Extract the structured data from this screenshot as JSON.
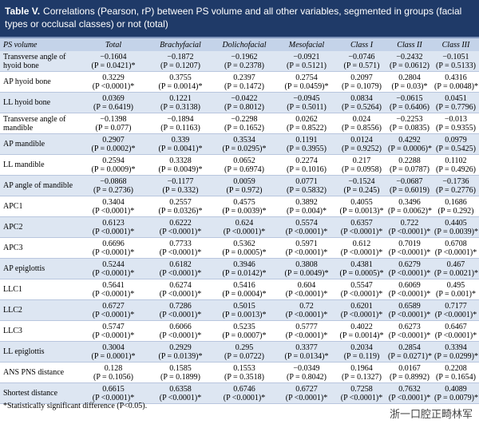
{
  "header": {
    "label": "Table V.",
    "title": "Correlations (Pearson, rP) between PS volume and all other variables, segmented in groups (facial types or occlusal classes) or not (total)"
  },
  "table": {
    "columns": [
      "PS volume",
      "Total",
      "Brachyfacial",
      "Dolichofacial",
      "Mesofacial",
      "Class I",
      "Class II",
      "Class III"
    ],
    "rows": [
      {
        "label": "Transverse angle of hyoid bone",
        "cells": [
          [
            "−0.1604",
            "(P = 0.0421)*"
          ],
          [
            "−0.1872",
            "(P = 0.1207)"
          ],
          [
            "−0.1962",
            "(P = 0.2378)"
          ],
          [
            "−0.0921",
            "(P = 0.5121)"
          ],
          [
            "−0.0746",
            "(P = 0.571)"
          ],
          [
            "−0.2432",
            "(P = 0.0612)"
          ],
          [
            "−0.1051",
            "(P = 0.5133)"
          ]
        ]
      },
      {
        "label": "AP hyoid bone",
        "cells": [
          [
            "0.3229",
            "(P <0.0001)*"
          ],
          [
            "0.3755",
            "(P = 0.0014)*"
          ],
          [
            "0.2397",
            "(P = 0.1472)"
          ],
          [
            "0.2754",
            "(P = 0.0459)*"
          ],
          [
            "0.2097",
            "(P = 0.1079)"
          ],
          [
            "0.2804",
            "(P = 0.03)*"
          ],
          [
            "0.4316",
            "(P = 0.0048)*"
          ]
        ]
      },
      {
        "label": "LL hyoid bone",
        "cells": [
          [
            "0.0369",
            "(P = 0.6419)"
          ],
          [
            "0.1221",
            "(P = 0.3138)"
          ],
          [
            "−0.0422",
            "(P = 0.8012)"
          ],
          [
            "−0.0945",
            "(P = 0.5011)"
          ],
          [
            "0.0834",
            "(P = 0.5264)"
          ],
          [
            "−0.0615",
            "(P = 0.6406)"
          ],
          [
            "0.0451",
            "(P = 0.7796)"
          ]
        ]
      },
      {
        "label": "Transverse angle of mandible",
        "cells": [
          [
            "−0.1398",
            "(P = 0.077)"
          ],
          [
            "−0.1894",
            "(P = 0.1163)"
          ],
          [
            "−0.2298",
            "(P = 0.1652)"
          ],
          [
            "0.0262",
            "(P = 0.8522)"
          ],
          [
            "0.024",
            "(P = 0.8556)"
          ],
          [
            "−0.2253",
            "(P = 0.0835)"
          ],
          [
            "−0.013",
            "(P = 0.9355)"
          ]
        ]
      },
      {
        "label": "AP mandible",
        "cells": [
          [
            "0.2907",
            "(P = 0.0002)*"
          ],
          [
            "0.339",
            "(P = 0.0041)*"
          ],
          [
            "0.3534",
            "(P = 0.0295)*"
          ],
          [
            "0.1191",
            "(P = 0.3955)"
          ],
          [
            "0.0124",
            "(P = 0.9252)"
          ],
          [
            "0.4292",
            "(P = 0.0006)*"
          ],
          [
            "0.0979",
            "(P = 0.5425)"
          ]
        ]
      },
      {
        "label": "LL mandible",
        "cells": [
          [
            "0.2594",
            "(P = 0.0009)*"
          ],
          [
            "0.3328",
            "(P = 0.0049)*"
          ],
          [
            "0.0652",
            "(P = 0.6974)"
          ],
          [
            "0.2274",
            "(P = 0.1016)"
          ],
          [
            "0.217",
            "(P = 0.0958)"
          ],
          [
            "0.2288",
            "(P = 0.0787)"
          ],
          [
            "0.1102",
            "(P = 0.4926)"
          ]
        ]
      },
      {
        "label": "AP angle of mandible",
        "cells": [
          [
            "−0.0868",
            "(P = 0.2736)"
          ],
          [
            "−0.1177",
            "(P = 0.332)"
          ],
          [
            "0.0059",
            "(P = 0.972)"
          ],
          [
            "0.0771",
            "(P = 0.5832)"
          ],
          [
            "−0.1524",
            "(P = 0.245)"
          ],
          [
            "−0.0687",
            "(P = 0.6019)"
          ],
          [
            "−0.1736",
            "(P = 0.2776)"
          ]
        ]
      },
      {
        "label": "APC1",
        "cells": [
          [
            "0.3404",
            "(P <0.0001)*"
          ],
          [
            "0.2557",
            "(P = 0.0326)*"
          ],
          [
            "0.4575",
            "(P = 0.0039)*"
          ],
          [
            "0.3892",
            "(P = 0.004)*"
          ],
          [
            "0.4055",
            "(P = 0.0013)*"
          ],
          [
            "0.3496",
            "(P = 0.0062)*"
          ],
          [
            "0.1686",
            "(P = 0.292)"
          ]
        ]
      },
      {
        "label": "APC2",
        "cells": [
          [
            "0.6123",
            "(P <0.0001)*"
          ],
          [
            "0.6222",
            "(P <0.0001)*"
          ],
          [
            "0.624",
            "(P <0.0001)*"
          ],
          [
            "0.5574",
            "(P <0.0001)*"
          ],
          [
            "0.6357",
            "(P <0.0001)*"
          ],
          [
            "0.722",
            "(P <0.0001)*"
          ],
          [
            "0.4405",
            "(P = 0.0039)*"
          ]
        ]
      },
      {
        "label": "APC3",
        "cells": [
          [
            "0.6696",
            "(P <0.0001)*"
          ],
          [
            "0.7733",
            "(P <0.0001)*"
          ],
          [
            "0.5362",
            "(P = 0.0005)*"
          ],
          [
            "0.5971",
            "(P <0.0001)*"
          ],
          [
            "0.612",
            "(P <0.0001)*"
          ],
          [
            "0.7019",
            "(P <0.0001)*"
          ],
          [
            "0.6708",
            "(P <0.0001)*"
          ]
        ]
      },
      {
        "label": "AP epiglottis",
        "cells": [
          [
            "0.5244",
            "(P <0.0001)*"
          ],
          [
            "0.6182",
            "(P <0.0001)*"
          ],
          [
            "0.3946",
            "(P = 0.0142)*"
          ],
          [
            "0.3808",
            "(P = 0.0049)*"
          ],
          [
            "0.4381",
            "(P = 0.0005)*"
          ],
          [
            "0.6279",
            "(P <0.0001)*"
          ],
          [
            "0.467",
            "(P = 0.0021)*"
          ]
        ]
      },
      {
        "label": "LLC1",
        "cells": [
          [
            "0.5641",
            "(P <0.0001)*"
          ],
          [
            "0.6274",
            "(P <0.0001)*"
          ],
          [
            "0.5416",
            "(P = 0.0004)*"
          ],
          [
            "0.604",
            "(P <0.0001)*"
          ],
          [
            "0.5547",
            "(P <0.0001)*"
          ],
          [
            "0.6069",
            "(P <0.0001)*"
          ],
          [
            "0.495",
            "(P = 0.001)*"
          ]
        ]
      },
      {
        "label": "LLC2",
        "cells": [
          [
            "0.6727",
            "(P <0.0001)*"
          ],
          [
            "0.7286",
            "(P <0.0001)*"
          ],
          [
            "0.5015",
            "(P = 0.0013)*"
          ],
          [
            "0.72",
            "(P <0.0001)*"
          ],
          [
            "0.6201",
            "(P <0.0001)*"
          ],
          [
            "0.6589",
            "(P <0.0001)*"
          ],
          [
            "0.7177",
            "(P <0.0001)*"
          ]
        ]
      },
      {
        "label": "LLC3",
        "cells": [
          [
            "0.5747",
            "(P <0.0001)*"
          ],
          [
            "0.6066",
            "(P <0.0001)*"
          ],
          [
            "0.5235",
            "(P = 0.0007)*"
          ],
          [
            "0.5777",
            "(P <0.0001)*"
          ],
          [
            "0.4022",
            "(P = 0.0014)*"
          ],
          [
            "0.6273",
            "(P <0.0001)*"
          ],
          [
            "0.6467",
            "(P <0.0001)*"
          ]
        ]
      },
      {
        "label": "LL epiglottis",
        "cells": [
          [
            "0.3004",
            "(P = 0.0001)*"
          ],
          [
            "0.2929",
            "(P = 0.0139)*"
          ],
          [
            "0.295",
            "(P = 0.0722)"
          ],
          [
            "0.3377",
            "(P = 0.0134)*"
          ],
          [
            "0.2034",
            "(P = 0.119)"
          ],
          [
            "0.2854",
            "(P = 0.0271)*"
          ],
          [
            "0.3394",
            "(P = 0.0299)*"
          ]
        ]
      },
      {
        "label": "ANS PNS distance",
        "cells": [
          [
            "0.128",
            "(P = 0.1056)"
          ],
          [
            "0.1585",
            "(P = 0.1899)"
          ],
          [
            "0.1553",
            "(P = 0.3518)"
          ],
          [
            "−0.0349",
            "(P = 0.8042)"
          ],
          [
            "0.1964",
            "(P = 0.1327)"
          ],
          [
            "0.0167",
            "(P = 0.8992)"
          ],
          [
            "0.2208",
            "(P = 0.1654)"
          ]
        ]
      },
      {
        "label": "Shortest distance",
        "cells": [
          [
            "0.6615",
            "(P <0.0001)*"
          ],
          [
            "0.6358",
            "(P <0.0001)*"
          ],
          [
            "0.6746",
            "(P <0.0001)*"
          ],
          [
            "0.6727",
            "(P <0.0001)*"
          ],
          [
            "0.7258",
            "(P <0.0001)*"
          ],
          [
            "0.7632",
            "(P <0.0001)*"
          ],
          [
            "0.4089",
            "(P = 0.0079)*"
          ]
        ]
      }
    ]
  },
  "footnote": "*Statistically significant difference (P<0.05).",
  "watermark": "浙一口腔正畸林军"
}
